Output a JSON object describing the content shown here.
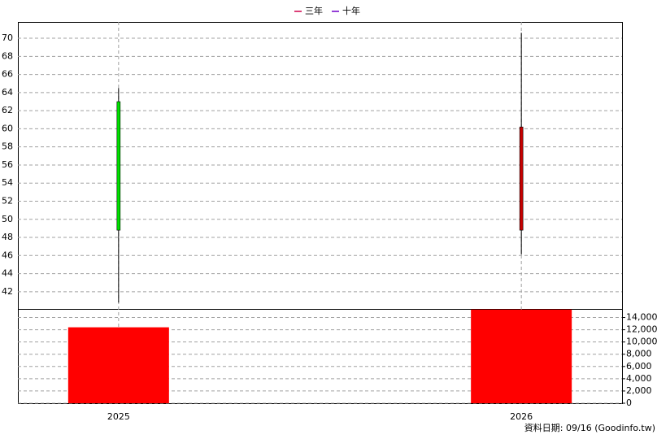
{
  "chart_data": {
    "type": "candlestick",
    "legend_entries": [
      {
        "name": "三年",
        "color": "#d0004a"
      },
      {
        "name": "十年",
        "color": "#7000c8"
      }
    ],
    "categories": [
      "2025",
      "2026"
    ],
    "open": [
      63,
      48.8
    ],
    "high": [
      64.5,
      70.6
    ],
    "low": [
      40.8,
      46.1
    ],
    "close": [
      48.8,
      60.2
    ],
    "up_color": "#c80000",
    "down_color": "#00e000",
    "ylim": [
      40.1,
      71.8
    ],
    "yticks": [
      42,
      44,
      46,
      48,
      50,
      52,
      54,
      56,
      58,
      60,
      62,
      64,
      66,
      68,
      70
    ],
    "volume": {
      "color": "#ff0000",
      "values": [
        12400,
        15300
      ]
    },
    "y2lim": [
      0,
      15400
    ],
    "y2ticks": [
      0,
      {
        "value": 2000,
        "label": "2,000"
      },
      {
        "value": 4000,
        "label": "4,000"
      },
      {
        "value": 6000,
        "label": "6,000"
      },
      {
        "value": 8000,
        "label": "8,000"
      },
      {
        "value": 10000,
        "label": "10,000"
      },
      {
        "value": 12000,
        "label": "12,000"
      },
      {
        "value": 14000,
        "label": "14,000"
      }
    ],
    "grid": true,
    "footer": "資料日期: 09/16  (Goodinfo.tw)"
  }
}
